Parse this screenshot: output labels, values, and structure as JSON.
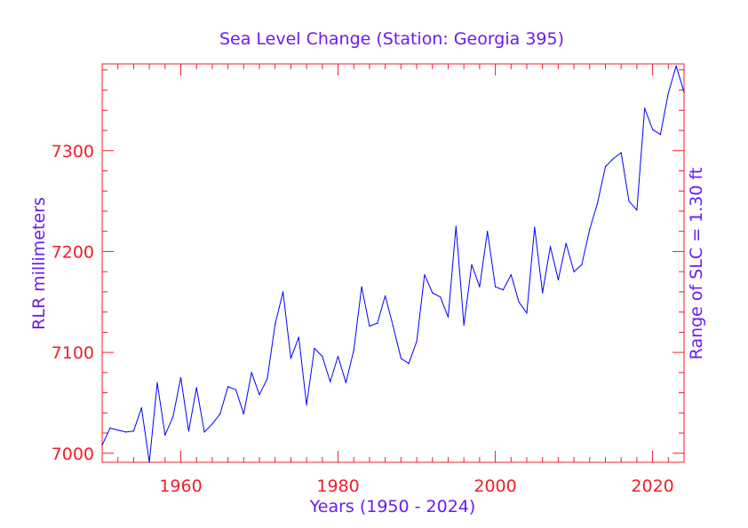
{
  "colors": {
    "title": "#6a1cf0",
    "axis": "#ef1f2a",
    "series": "#0000ff",
    "background": "#ffffff"
  },
  "chart_data": {
    "type": "line",
    "title": "Sea Level Change (Station: Georgia 395)",
    "xlabel": "Years (1950 - 2024)",
    "ylabel": "RLR millimeters",
    "right_label": "Range of SLC = 1.30 ft",
    "xlim": [
      1950,
      2024
    ],
    "ylim": [
      6991,
      7386
    ],
    "x_ticks": [
      1960,
      1980,
      2000,
      2020
    ],
    "x_tick_labels": [
      "1960",
      "1980",
      "2000",
      "2020"
    ],
    "y_ticks": [
      7000,
      7100,
      7200,
      7300
    ],
    "y_tick_labels": [
      "7000",
      "7100",
      "7200",
      "7300"
    ],
    "grid": false,
    "series": [
      {
        "name": "RLR millimeters",
        "x": [
          1950,
          1951,
          1952,
          1953,
          1954,
          1955,
          1956,
          1957,
          1958,
          1959,
          1960,
          1961,
          1962,
          1963,
          1964,
          1965,
          1966,
          1967,
          1968,
          1969,
          1970,
          1971,
          1972,
          1973,
          1974,
          1975,
          1976,
          1977,
          1978,
          1979,
          1980,
          1981,
          1982,
          1983,
          1984,
          1985,
          1986,
          1987,
          1988,
          1989,
          1990,
          1991,
          1992,
          1993,
          1994,
          1995,
          1996,
          1997,
          1998,
          1999,
          2000,
          2001,
          2002,
          2003,
          2004,
          2005,
          2006,
          2007,
          2008,
          2009,
          2010,
          2011,
          2012,
          2013,
          2014,
          2015,
          2016,
          2017,
          2018,
          2019,
          2020,
          2021,
          2022,
          2023,
          2024
        ],
        "values": [
          7008,
          7025,
          7023,
          7021,
          7022,
          7045,
          6991,
          7070,
          7018,
          7036,
          7075,
          7022,
          7065,
          7021,
          7029,
          7039,
          7066,
          7063,
          7039,
          7080,
          7058,
          7074,
          7128,
          7160,
          7094,
          7115,
          7048,
          7104,
          7096,
          7071,
          7096,
          7070,
          7102,
          7165,
          7126,
          7129,
          7156,
          7126,
          7094,
          7089,
          7111,
          7177,
          7159,
          7155,
          7135,
          7225,
          7127,
          7187,
          7165,
          7220,
          7165,
          7162,
          7177,
          7150,
          7139,
          7224,
          7159,
          7205,
          7172,
          7208,
          7180,
          7187,
          7222,
          7248,
          7284,
          7292,
          7298,
          7250,
          7241,
          7342,
          7321,
          7316,
          7357,
          7384,
          7358
        ]
      }
    ]
  }
}
